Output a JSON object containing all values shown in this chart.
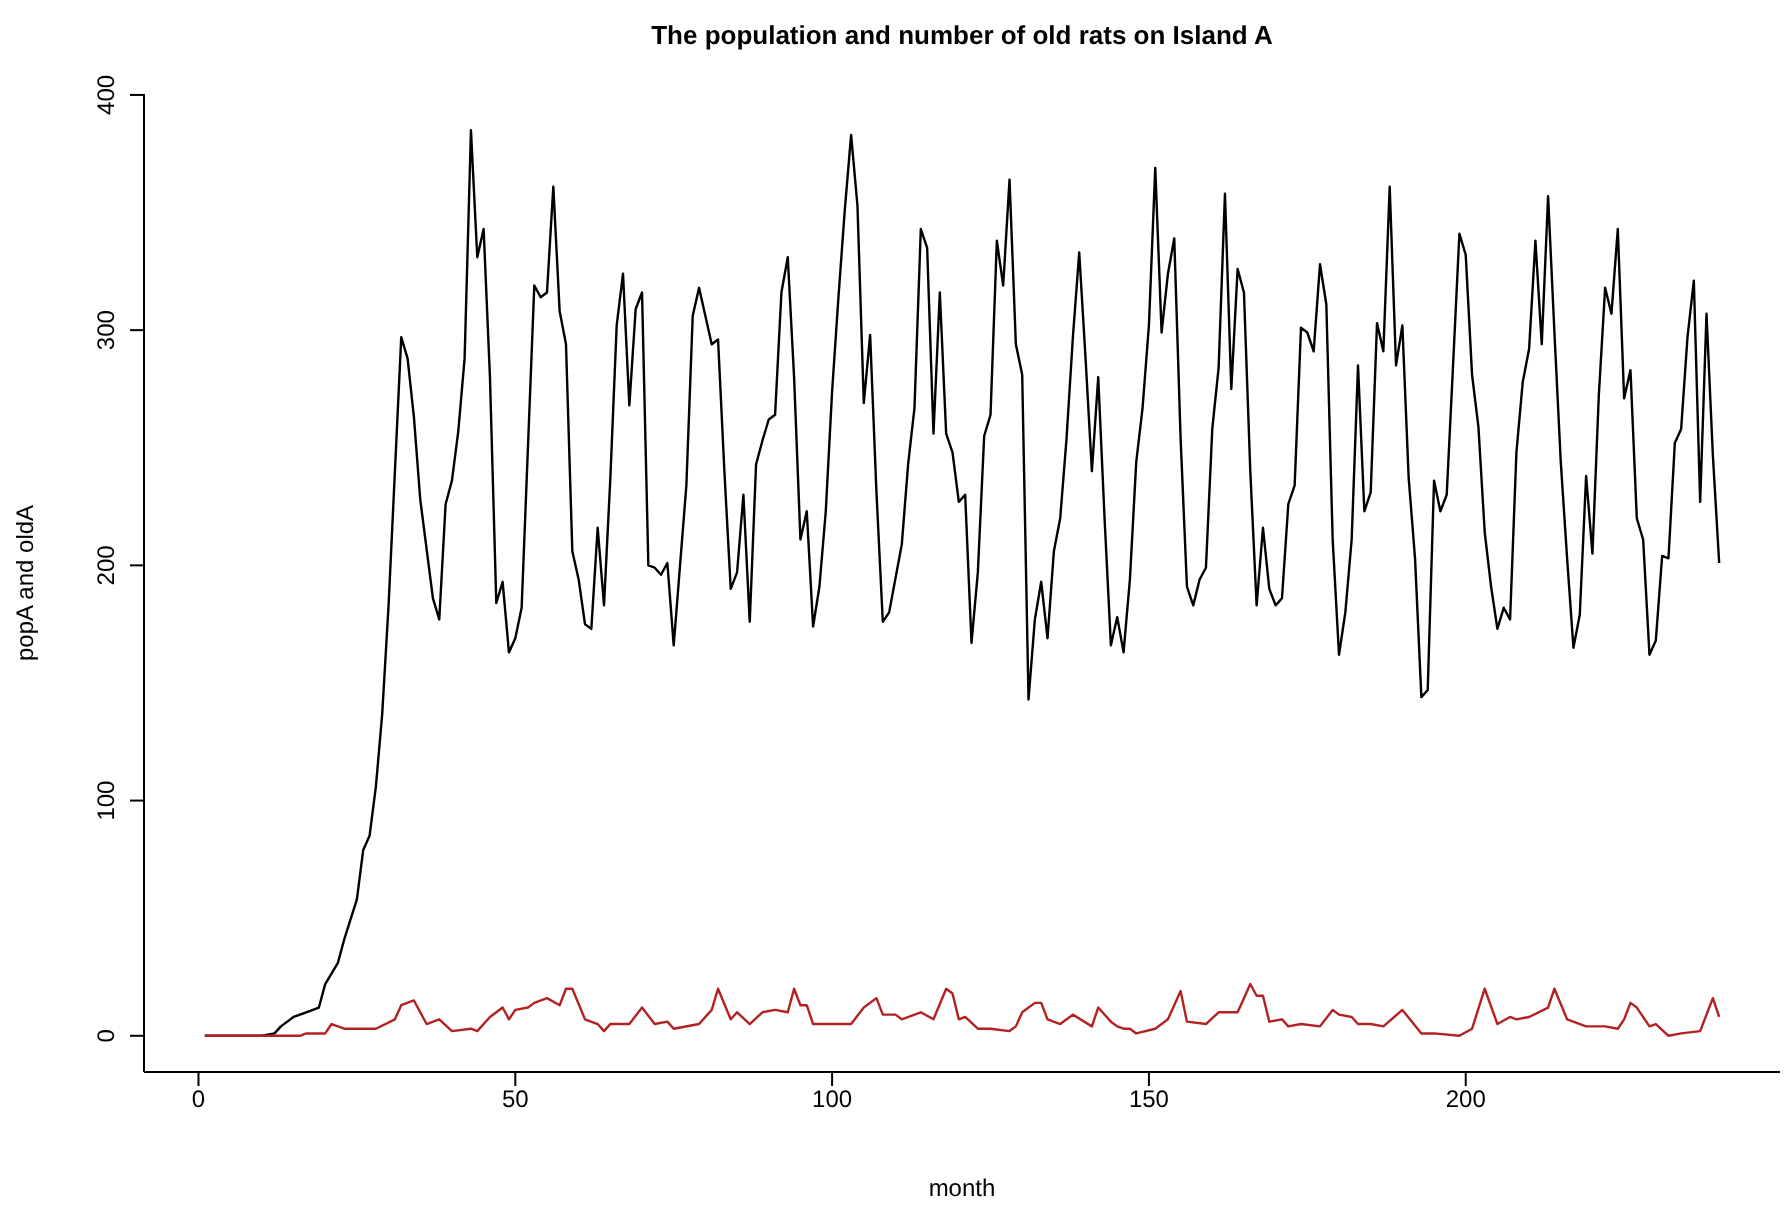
{
  "chart_data": {
    "type": "line",
    "title": "The population and number of old rats on Island A",
    "xlabel": "month",
    "ylabel": "popA and oldA",
    "xlim": [
      -8.6,
      249.6
    ],
    "xticks": [
      0,
      50,
      100,
      150,
      200
    ],
    "ylim": [
      -15.4,
      400.4
    ],
    "yticks": [
      0,
      100,
      200,
      300,
      400
    ],
    "marker": "none",
    "line_style": "solid",
    "series": [
      {
        "color": "#000000",
        "x": [
          1,
          10,
          12,
          13,
          15,
          17,
          19,
          20,
          22,
          23,
          25,
          26,
          27,
          28,
          29,
          30,
          32,
          33,
          34,
          35,
          37,
          38,
          39,
          40,
          41,
          42,
          43,
          44,
          45,
          46,
          47,
          48,
          49,
          50,
          51,
          53,
          54,
          55,
          56,
          57,
          58,
          59,
          60,
          61,
          62,
          63,
          64,
          65,
          66,
          67,
          68,
          69,
          70,
          71,
          72,
          73,
          74,
          75,
          76,
          77,
          78,
          79,
          80,
          81,
          82,
          83,
          84,
          85,
          86,
          87,
          88,
          89,
          90,
          91,
          92,
          93,
          94,
          95,
          96,
          97,
          98,
          99,
          100,
          101,
          102,
          103,
          104,
          105,
          106,
          107,
          108,
          109,
          111,
          112,
          113,
          114,
          115,
          116,
          117,
          118,
          119,
          120,
          121,
          122,
          123,
          124,
          125,
          126,
          127,
          128,
          129,
          130,
          131,
          132,
          133,
          134,
          135,
          136,
          137,
          138,
          139,
          140,
          141,
          142,
          143,
          144,
          145,
          146,
          147,
          148,
          149,
          150,
          151,
          152,
          153,
          154,
          155,
          156,
          157,
          158,
          159,
          160,
          161,
          162,
          163,
          164,
          165,
          166,
          167,
          168,
          169,
          170,
          171,
          172,
          173,
          174,
          175,
          176,
          177,
          178,
          179,
          180,
          181,
          182,
          183,
          184,
          185,
          186,
          187,
          188,
          189,
          190,
          191,
          192,
          193,
          194,
          195,
          196,
          197,
          198,
          199,
          200,
          201,
          202,
          203,
          204,
          205,
          206,
          207,
          208,
          209,
          210,
          211,
          212,
          213,
          214,
          215,
          216,
          217,
          218,
          219,
          220,
          221,
          222,
          223,
          224,
          225,
          226,
          227,
          228,
          229,
          230,
          231,
          232,
          233,
          234,
          235,
          236,
          237,
          238,
          239,
          240
        ],
        "values": [
          0,
          0,
          1,
          4,
          8,
          10,
          12,
          22,
          31,
          41,
          58,
          79,
          85,
          106,
          137,
          183,
          297,
          288,
          263,
          228,
          186,
          177,
          226,
          236,
          257,
          288,
          385,
          331,
          343,
          280,
          184,
          193,
          163,
          169,
          182,
          319,
          314,
          316,
          361,
          308,
          294,
          206,
          194,
          175,
          173,
          216,
          183,
          237,
          302,
          324,
          268,
          309,
          316,
          200,
          199,
          196,
          201,
          166,
          200,
          234,
          306,
          318,
          306,
          294,
          296,
          240,
          190,
          197,
          230,
          176,
          243,
          253,
          262,
          264,
          316,
          331,
          280,
          211,
          223,
          174,
          191,
          223,
          274,
          314,
          351,
          383,
          353,
          269,
          298,
          231,
          176,
          180,
          209,
          243,
          267,
          343,
          335,
          256,
          316,
          256,
          248,
          227,
          230,
          167,
          197,
          255,
          264,
          338,
          319,
          364,
          294,
          281,
          143,
          177,
          193,
          169,
          206,
          220,
          254,
          297,
          333,
          288,
          240,
          280,
          220,
          166,
          178,
          163,
          194,
          244,
          267,
          302,
          369,
          299,
          324,
          339,
          254,
          191,
          183,
          194,
          199,
          258,
          284,
          358,
          275,
          326,
          316,
          240,
          183,
          216,
          190,
          183,
          186,
          226,
          234,
          301,
          299,
          291,
          328,
          311,
          211,
          162,
          180,
          211,
          285,
          223,
          231,
          303,
          291,
          361,
          285,
          302,
          237,
          203,
          144,
          147,
          236,
          223,
          230,
          285,
          341,
          332,
          281,
          259,
          214,
          191,
          173,
          182,
          177,
          248,
          278,
          292,
          338,
          294,
          357,
          299,
          244,
          203,
          165,
          179,
          238,
          205,
          272,
          318,
          307,
          343,
          271,
          283,
          220,
          211,
          162,
          168,
          204,
          203,
          252,
          258,
          297,
          321,
          227,
          307,
          247,
          201
        ]
      },
      {
        "color": "#b22222",
        "x": [
          1,
          16,
          17,
          20,
          21,
          23,
          28,
          31,
          32,
          34,
          36,
          38,
          40,
          43,
          44,
          46,
          48,
          49,
          50,
          52,
          53,
          55,
          57,
          58,
          59,
          61,
          63,
          64,
          65,
          68,
          70,
          72,
          74,
          75,
          79,
          81,
          82,
          84,
          85,
          87,
          89,
          91,
          93,
          94,
          95,
          96,
          97,
          100,
          103,
          105,
          107,
          108,
          110,
          111,
          114,
          116,
          118,
          119,
          120,
          121,
          123,
          125,
          128,
          129,
          130,
          132,
          133,
          134,
          136,
          138,
          141,
          142,
          144,
          145,
          146,
          147,
          148,
          151,
          153,
          155,
          156,
          159,
          161,
          164,
          166,
          167,
          168,
          169,
          171,
          172,
          174,
          177,
          179,
          180,
          182,
          183,
          185,
          187,
          190,
          193,
          195,
          199,
          201,
          203,
          205,
          207,
          208,
          210,
          213,
          214,
          216,
          219,
          222,
          224,
          225,
          226,
          227,
          229,
          230,
          232,
          234,
          237,
          239,
          240
        ],
        "values": [
          0,
          0,
          1,
          1,
          5,
          3,
          3,
          7,
          13,
          15,
          5,
          7,
          2,
          3,
          2,
          8,
          12,
          7,
          11,
          12,
          14,
          16,
          13,
          20,
          20,
          7,
          5,
          2,
          5,
          5,
          12,
          5,
          6,
          3,
          5,
          11,
          20,
          7,
          10,
          5,
          10,
          11,
          10,
          20,
          13,
          13,
          5,
          5,
          5,
          12,
          16,
          9,
          9,
          7,
          10,
          7,
          20,
          18,
          7,
          8,
          3,
          3,
          2,
          4,
          10,
          14,
          14,
          7,
          5,
          9,
          4,
          12,
          6,
          4,
          3,
          3,
          1,
          3,
          7,
          19,
          6,
          5,
          10,
          10,
          22,
          17,
          17,
          6,
          7,
          4,
          5,
          4,
          11,
          9,
          8,
          5,
          5,
          4,
          11,
          1,
          1,
          0,
          3,
          20,
          5,
          8,
          7,
          8,
          12,
          20,
          7,
          4,
          4,
          3,
          7,
          14,
          12,
          4,
          5,
          0,
          1,
          2,
          16,
          8
        ]
      }
    ]
  }
}
